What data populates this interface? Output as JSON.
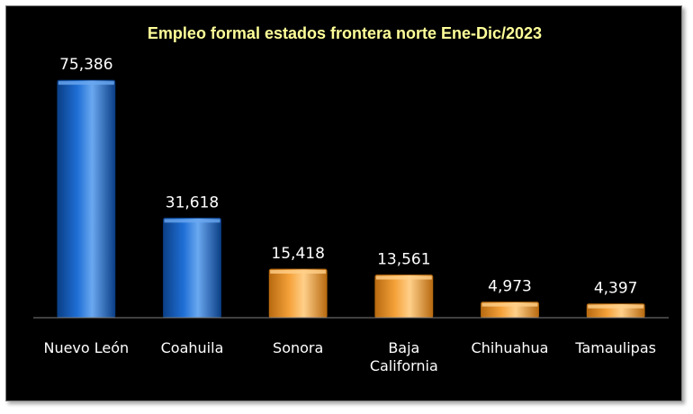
{
  "chart_data": {
    "type": "bar",
    "title": "Empleo formal estados frontera norte Ene-Dic/2023",
    "categories": [
      [
        "Nuevo León"
      ],
      [
        "Coahuila"
      ],
      [
        "Sonora"
      ],
      [
        "Baja",
        "California"
      ],
      [
        "Chihuahua"
      ],
      [
        "Tamaulipas"
      ]
    ],
    "values": [
      75386,
      31618,
      15418,
      13561,
      4973,
      4397
    ],
    "value_labels": [
      "75,386",
      "31,618",
      "15,418",
      "13,561",
      "4,973",
      "4,397"
    ],
    "ylim": [
      0,
      80000
    ],
    "grid": false,
    "legend": "none",
    "colors": {
      "background": "#000000",
      "title": "#ffff99",
      "text": "#ffffff",
      "axis": "#808080",
      "bars": [
        "#1f6fd6",
        "#1f6fd6",
        "#f5a23a",
        "#f5a23a",
        "#f5a23a",
        "#f5a23a"
      ],
      "bars_dark": [
        "#0b3f86",
        "#0b3f86",
        "#b86a10",
        "#b86a10",
        "#b86a10",
        "#b86a10"
      ],
      "bars_light": [
        "#6aa8f0",
        "#6aa8f0",
        "#ffd08a",
        "#ffd08a",
        "#ffd08a",
        "#ffd08a"
      ]
    }
  }
}
